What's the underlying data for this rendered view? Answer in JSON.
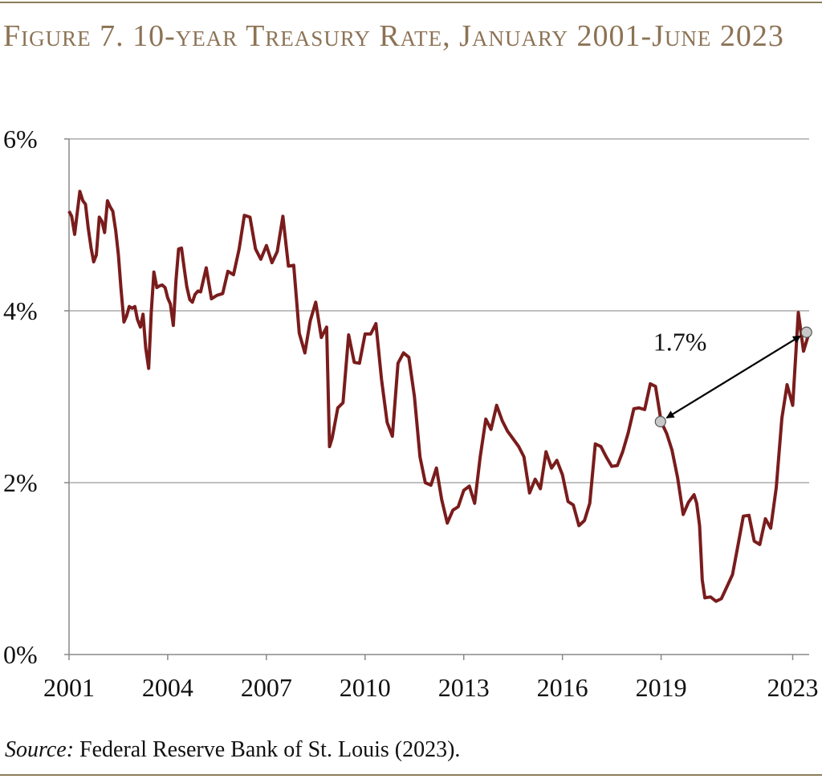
{
  "title": "Figure 7. 10-year Treasury Rate, January 2001-June 2023",
  "source": {
    "label": "Source:",
    "text": " Federal Reserve Bank of St. Louis (2023)."
  },
  "colors": {
    "line": "#7a1c1c",
    "title": "#8c7355",
    "grid": "#9a9a9a",
    "marker": "#c8c8c8"
  },
  "chart_data": {
    "type": "line",
    "title": "Figure 7. 10-year Treasury Rate, January 2001-June 2023",
    "xlabel": "",
    "ylabel": "",
    "xlim": [
      2001.0,
      2023.5
    ],
    "ylim": [
      0,
      6
    ],
    "grid": "horizontal",
    "legend": "none",
    "y_ticks": [
      {
        "value": 0,
        "label": "0%"
      },
      {
        "value": 2,
        "label": "2%"
      },
      {
        "value": 4,
        "label": "4%"
      },
      {
        "value": 6,
        "label": "6%"
      }
    ],
    "x_ticks": [
      {
        "value": 2001,
        "label": "2001"
      },
      {
        "value": 2004,
        "label": "2004"
      },
      {
        "value": 2007,
        "label": "2007"
      },
      {
        "value": 2010,
        "label": "2010"
      },
      {
        "value": 2013,
        "label": "2013"
      },
      {
        "value": 2016,
        "label": "2016"
      },
      {
        "value": 2019,
        "label": "2019"
      },
      {
        "value": 2023,
        "label": "2023"
      }
    ],
    "series": [
      {
        "x": [
          2001.0,
          2001.08,
          2001.17,
          2001.25,
          2001.33,
          2001.42,
          2001.5,
          2001.58,
          2001.67,
          2001.75,
          2001.83,
          2001.92,
          2002.0,
          2002.08,
          2002.17,
          2002.25,
          2002.33,
          2002.42,
          2002.5,
          2002.58,
          2002.67,
          2002.75,
          2002.83,
          2002.92,
          2003.0,
          2003.08,
          2003.17,
          2003.25,
          2003.33,
          2003.42,
          2003.5,
          2003.58,
          2003.67,
          2003.75,
          2003.83,
          2003.92,
          2004.0,
          2004.08,
          2004.17,
          2004.25,
          2004.33,
          2004.42,
          2004.5,
          2004.58,
          2004.67,
          2004.75,
          2004.83,
          2004.92,
          2005.0,
          2005.17,
          2005.33,
          2005.5,
          2005.67,
          2005.83,
          2006.0,
          2006.17,
          2006.33,
          2006.5,
          2006.67,
          2006.83,
          2007.0,
          2007.17,
          2007.33,
          2007.5,
          2007.67,
          2007.83,
          2008.0,
          2008.17,
          2008.33,
          2008.5,
          2008.67,
          2008.83,
          2008.92,
          2009.0,
          2009.17,
          2009.33,
          2009.5,
          2009.67,
          2009.83,
          2010.0,
          2010.17,
          2010.33,
          2010.5,
          2010.67,
          2010.83,
          2011.0,
          2011.17,
          2011.33,
          2011.5,
          2011.67,
          2011.83,
          2012.0,
          2012.17,
          2012.33,
          2012.5,
          2012.67,
          2012.83,
          2013.0,
          2013.17,
          2013.33,
          2013.5,
          2013.67,
          2013.83,
          2014.0,
          2014.17,
          2014.33,
          2014.5,
          2014.67,
          2014.83,
          2015.0,
          2015.17,
          2015.33,
          2015.5,
          2015.67,
          2015.83,
          2016.0,
          2016.17,
          2016.33,
          2016.5,
          2016.67,
          2016.83,
          2017.0,
          2017.17,
          2017.33,
          2017.5,
          2017.67,
          2017.83,
          2018.0,
          2018.17,
          2018.33,
          2018.5,
          2018.67,
          2018.83,
          2019.0,
          2019.17,
          2019.33,
          2019.5,
          2019.67,
          2019.83,
          2020.0,
          2020.08,
          2020.17,
          2020.25,
          2020.33,
          2020.5,
          2020.67,
          2020.83,
          2021.0,
          2021.17,
          2021.33,
          2021.5,
          2021.67,
          2021.83,
          2022.0,
          2022.17,
          2022.33,
          2022.5,
          2022.67,
          2022.83,
          2023.0,
          2023.17,
          2023.33,
          2023.5
        ],
        "values": [
          5.16,
          5.1,
          4.89,
          5.14,
          5.39,
          5.28,
          5.24,
          4.97,
          4.73,
          4.57,
          4.65,
          5.09,
          5.04,
          4.91,
          5.28,
          5.21,
          5.16,
          4.93,
          4.65,
          4.26,
          3.87,
          3.94,
          4.05,
          4.03,
          4.05,
          3.9,
          3.81,
          3.96,
          3.57,
          3.33,
          3.98,
          4.45,
          4.27,
          4.29,
          4.3,
          4.27,
          4.15,
          4.08,
          3.83,
          4.35,
          4.72,
          4.73,
          4.5,
          4.28,
          4.13,
          4.1,
          4.19,
          4.23,
          4.22,
          4.5,
          4.14,
          4.18,
          4.2,
          4.46,
          4.42,
          4.72,
          5.11,
          5.09,
          4.72,
          4.6,
          4.76,
          4.56,
          4.69,
          5.1,
          4.52,
          4.53,
          3.74,
          3.51,
          3.88,
          4.1,
          3.69,
          3.81,
          2.42,
          2.52,
          2.87,
          2.93,
          3.72,
          3.4,
          3.39,
          3.73,
          3.73,
          3.85,
          3.2,
          2.7,
          2.54,
          3.39,
          3.51,
          3.46,
          3.0,
          2.3,
          2.0,
          1.97,
          2.17,
          1.8,
          1.53,
          1.68,
          1.72,
          1.91,
          1.96,
          1.76,
          2.3,
          2.74,
          2.62,
          2.9,
          2.72,
          2.6,
          2.51,
          2.42,
          2.3,
          1.88,
          2.04,
          1.93,
          2.36,
          2.17,
          2.26,
          2.09,
          1.78,
          1.74,
          1.5,
          1.56,
          1.76,
          2.45,
          2.42,
          2.3,
          2.19,
          2.2,
          2.36,
          2.58,
          2.86,
          2.87,
          2.85,
          3.15,
          3.12,
          2.71,
          2.57,
          2.38,
          2.06,
          1.63,
          1.77,
          1.86,
          1.76,
          1.5,
          0.87,
          0.66,
          0.67,
          0.62,
          0.65,
          0.79,
          0.93,
          1.26,
          1.61,
          1.62,
          1.32,
          1.28,
          1.58,
          1.47,
          1.94,
          2.75,
          3.14,
          2.9,
          3.98,
          3.53,
          3.75
        ]
      }
    ],
    "annotations": [
      {
        "text": "1.7%",
        "from": {
          "x": 2018.98,
          "y": 2.71
        },
        "to": {
          "x": 2023.42,
          "y": 3.75
        }
      }
    ]
  }
}
